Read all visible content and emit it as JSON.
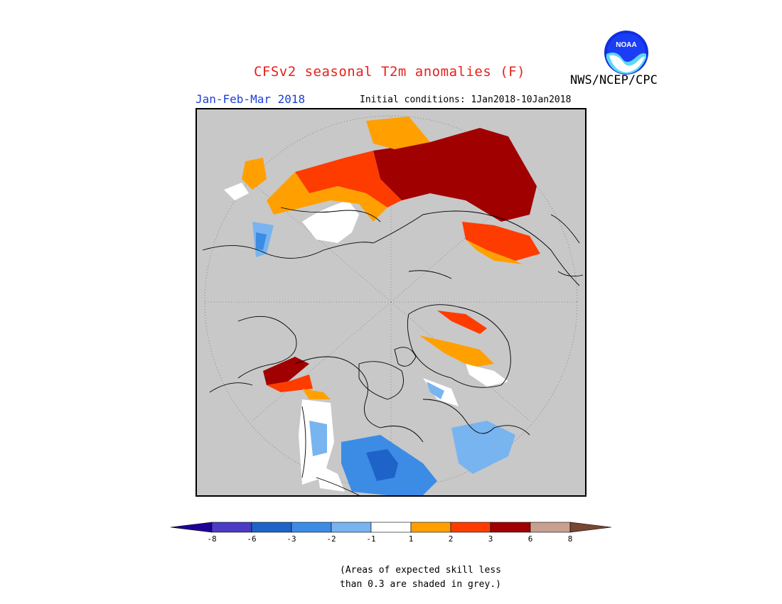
{
  "header": {
    "title": "CFSv2 seasonal T2m anomalies (F)",
    "agency": "NWS/NCEP/CPC",
    "logo_text": "NOAA",
    "season": "Jan-Feb-Mar 2018",
    "initial_conditions": "Initial conditions: 1Jan2018-10Jan2018"
  },
  "map": {
    "projection": "north polar stereographic",
    "background_color": "#c8c8c8",
    "legend_note": "(Areas of expected skill less than 0.3 are shaded in grey.)"
  },
  "legend": {
    "bins": [
      {
        "color": "#1e0097"
      },
      {
        "color": "#4b3bc5"
      },
      {
        "color": "#1e64c8"
      },
      {
        "color": "#3c8ce6"
      },
      {
        "color": "#78b4f0"
      },
      {
        "color": "#ffffff"
      },
      {
        "color": "#ffa000"
      },
      {
        "color": "#ff3c00"
      },
      {
        "color": "#a00000"
      },
      {
        "color": "#c8a090"
      },
      {
        "color": "#784632"
      }
    ],
    "tick_labels": [
      "-8",
      "-6",
      "-3",
      "-2",
      "-1",
      "1",
      "2",
      "3",
      "6",
      "8"
    ]
  },
  "note": {
    "line1": "(Areas of expected skill less",
    "line2": "than 0.3 are shaded in grey.)"
  }
}
